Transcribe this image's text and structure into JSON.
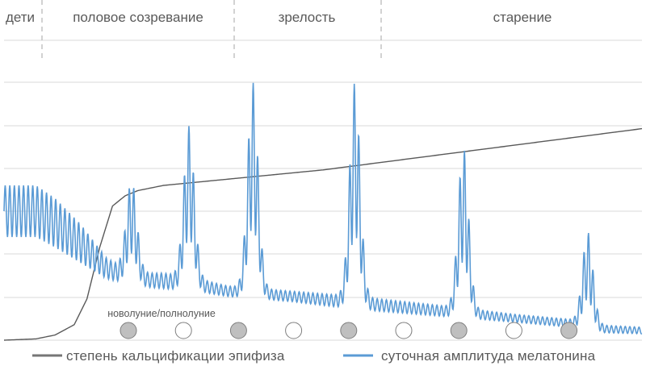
{
  "chart_data": {
    "type": "line",
    "title": "",
    "xlabel": "",
    "ylabel": "",
    "grid": true,
    "legend_position": "bottom",
    "stages": [
      "дети",
      "половое созревание",
      "зрелость",
      "старение"
    ],
    "moon_phase_label": "новолуние/полнолуние",
    "moon_phases": [
      "new",
      "full",
      "new",
      "full",
      "new",
      "full",
      "new",
      "full",
      "new"
    ],
    "series": [
      {
        "name": "степень кальцификации эпифиза",
        "color": "#595959",
        "points": [
          [
            0,
            0
          ],
          [
            5,
            0.5
          ],
          [
            8,
            2
          ],
          [
            11,
            6
          ],
          [
            13,
            16
          ],
          [
            15,
            36
          ],
          [
            17,
            52
          ],
          [
            19,
            56
          ],
          [
            21,
            58
          ],
          [
            25,
            60
          ],
          [
            50,
            66
          ],
          [
            100,
            82
          ]
        ]
      },
      {
        "name": "суточная амплитуда мелатонина",
        "color": "#5b9bd5",
        "envelope_upper": [
          [
            0,
            60
          ],
          [
            5,
            60
          ],
          [
            8,
            55
          ],
          [
            12,
            45
          ],
          [
            16,
            32
          ],
          [
            20,
            26
          ],
          [
            25,
            26
          ],
          [
            30,
            24
          ],
          [
            35,
            21
          ],
          [
            45,
            19
          ],
          [
            55,
            17
          ],
          [
            70,
            13
          ],
          [
            80,
            10
          ],
          [
            89,
            8
          ],
          [
            92,
            6
          ],
          [
            100,
            5
          ]
        ],
        "envelope_lower": [
          [
            0,
            40
          ],
          [
            5,
            40
          ],
          [
            8,
            36
          ],
          [
            12,
            30
          ],
          [
            16,
            24
          ],
          [
            20,
            21
          ],
          [
            25,
            20
          ],
          [
            30,
            19
          ],
          [
            35,
            17
          ],
          [
            45,
            15
          ],
          [
            55,
            12
          ],
          [
            70,
            9
          ],
          [
            80,
            7
          ],
          [
            89,
            5
          ],
          [
            92,
            3
          ],
          [
            100,
            2.5
          ]
        ],
        "peaks": [
          {
            "x": 20,
            "height": 62
          },
          {
            "x": 29,
            "height": 83
          },
          {
            "x": 39,
            "height": 100
          },
          {
            "x": 55,
            "height": 100
          },
          {
            "x": 72,
            "height": 75
          },
          {
            "x": 91.5,
            "height": 42
          }
        ]
      }
    ]
  }
}
